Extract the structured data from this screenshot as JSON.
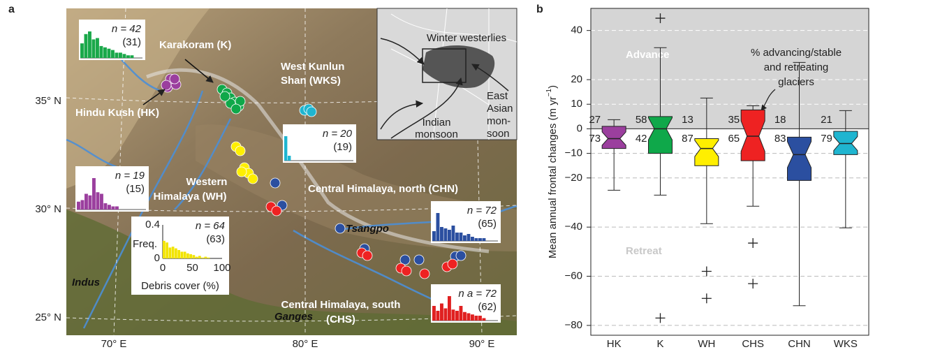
{
  "panel_a": {
    "label": "a",
    "lat_ticks": [
      "35° N",
      "30° N",
      "25° N"
    ],
    "lon_ticks": [
      "70° E",
      "80° E",
      "90° E"
    ],
    "regions": {
      "karakoram": "Karakoram (K)",
      "wks": [
        "West Kunlun",
        "Shan (WKS)"
      ],
      "hk": "Hindu Kush (HK)",
      "wh": [
        "Western",
        "Himalaya (WH)"
      ],
      "chn": "Central Himalaya, north (CHN)",
      "chs": [
        "Central Himalaya, south",
        "(CHS)"
      ]
    },
    "rivers": {
      "tsangpo": "Tsangpo",
      "indus": "Indus",
      "ganges": "Ganges"
    },
    "inset": {
      "westerlies": "Winter westerlies",
      "indian": [
        "Indian",
        "monsoon"
      ],
      "east_asian": [
        "East",
        "Asian",
        "mon-",
        "soon"
      ]
    },
    "histograms": [
      {
        "n": "n = 42",
        "paren": "(31)",
        "color": "#1aa84a",
        "bars": [
          0.55,
          0.9,
          1,
          0.7,
          0.75,
          0.45,
          0.4,
          0.35,
          0.3,
          0.2,
          0.2,
          0.15,
          0.1,
          0.1
        ]
      },
      {
        "n": "n = 20",
        "paren": "(19)",
        "color": "#1fb5d0",
        "bars": [
          1,
          0.2
        ]
      },
      {
        "n": "n = 19",
        "paren": "(15)",
        "color": "#9b3f9e",
        "bars": [
          0.25,
          0.3,
          0.5,
          0.45,
          1,
          0.55,
          0.5,
          0.2,
          0.15,
          0.1,
          0.1
        ]
      },
      {
        "n": "n = 64",
        "paren": "(63)",
        "color": "#f2e400",
        "bars": [
          0.21,
          0.19,
          0.13,
          0.14,
          0.12,
          0.1,
          0.08,
          0.08,
          0.06,
          0.05,
          0.04,
          0.02,
          0.03,
          0.01,
          0.02,
          0.01
        ]
      },
      {
        "n": "n = 72",
        "paren": "(65)",
        "color": "#2b4fa0",
        "bars": [
          0.35,
          1,
          0.5,
          0.45,
          0.4,
          0.55,
          0.3,
          0.3,
          0.2,
          0.25,
          0.15,
          0.1,
          0.1,
          0.1
        ]
      },
      {
        "n": "n a = 72",
        "paren": "(62)",
        "color": "#e02020",
        "bars": [
          0.6,
          0.4,
          0.7,
          0.5,
          1,
          0.45,
          0.4,
          0.6,
          0.35,
          0.3,
          0.25,
          0.2,
          0.2,
          0.1
        ]
      }
    ],
    "debris_axis": {
      "yticks": [
        "0.4",
        "0"
      ],
      "ylabel": "Freq.",
      "xticks": [
        "0",
        "50",
        "100"
      ],
      "xlabel": "Debris cover (%)"
    }
  },
  "chart_data": {
    "type": "box",
    "label": "b",
    "ylabel": [
      "Mean annual frontal changes (m yr",
      "−1",
      ")"
    ],
    "categories": [
      "HK",
      "K",
      "WH",
      "CHS",
      "CHN",
      "WKS"
    ],
    "colors": [
      "#9b3f9e",
      "#0fa84a",
      "#ffef00",
      "#ee2222",
      "#2b4fa0",
      "#1fb5d0"
    ],
    "low": [
      -25,
      -27,
      -38.6,
      -31.5,
      -72,
      -40.3
    ],
    "q1": [
      -8,
      -10,
      -15,
      -13,
      -21,
      -10.5
    ],
    "median": [
      -4,
      0,
      -8,
      -3,
      -10.5,
      -6
    ],
    "q3": [
      1,
      5,
      -4,
      7.7,
      -3.4,
      -1
    ],
    "high": [
      3.7,
      33,
      12.5,
      9.4,
      27,
      7.4
    ],
    "outliers": [
      [],
      [
        45,
        -77
      ],
      [
        -58,
        -69
      ],
      [
        -46.5,
        -63
      ],
      [],
      []
    ],
    "advance_pct": [
      27,
      58,
      13,
      35,
      18,
      21
    ],
    "retreat_pct": [
      73,
      42,
      87,
      65,
      83,
      79
    ],
    "ylim": [
      -84,
      49
    ],
    "yticks": [
      40,
      20,
      10,
      0,
      {
        "value": -10,
        "label": "−10"
      },
      {
        "value": -20,
        "label": "−20"
      },
      {
        "value": -40,
        "label": "−40"
      },
      {
        "value": -60,
        "label": "−60"
      },
      {
        "value": -80,
        "label": "−80"
      }
    ],
    "grid": true,
    "shade_above": 0,
    "advance_label": "Advance",
    "retreat_label": "Retreat",
    "annotation": [
      "% advancing/stable",
      "and retreating",
      "glaciers"
    ]
  }
}
